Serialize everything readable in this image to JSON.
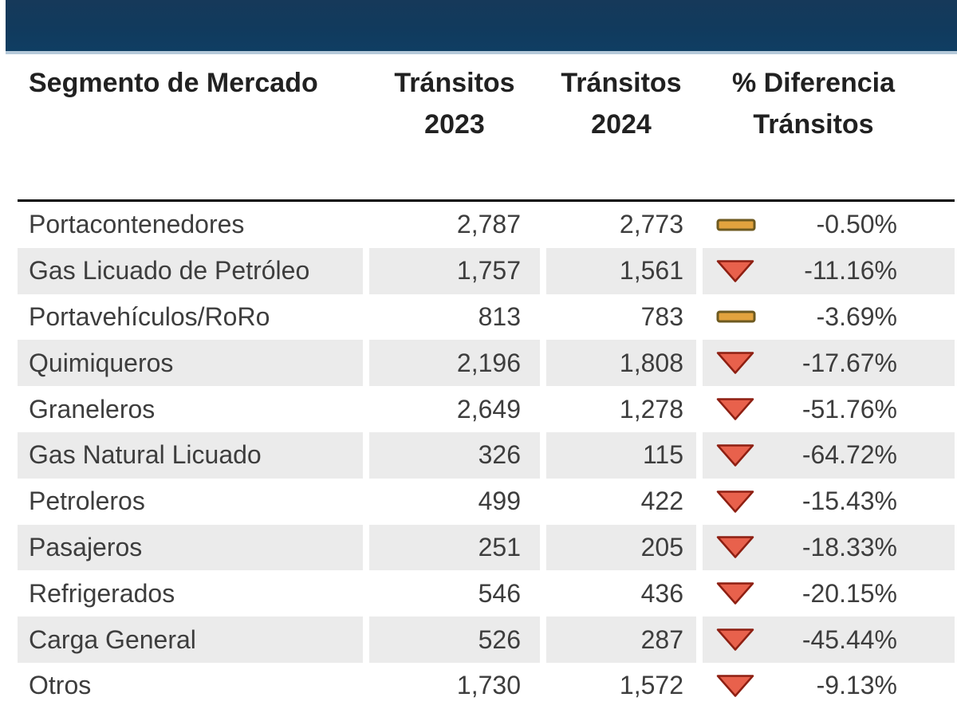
{
  "topbar": {
    "color": "#113a5d",
    "underline_color": "#b5c9d9"
  },
  "table": {
    "header": [
      {
        "label": "Segmento de Mercado",
        "lines": [
          "Segmento de Mercado"
        ]
      },
      {
        "label": "Tránsitos 2023",
        "lines": [
          "Tránsitos",
          "2023"
        ]
      },
      {
        "label": "Tránsitos 2024",
        "lines": [
          "Tránsitos",
          "2024"
        ]
      },
      {
        "label": "% Diferencia Tránsitos",
        "lines": [
          "% Diferencia",
          "Tránsitos"
        ]
      }
    ],
    "rows": [
      {
        "segment": "Portacontenedores",
        "transits_2023": "2,787",
        "transits_2024": "2,773",
        "indicator": "flat-dash-icon",
        "pct_diff": "-0.50%"
      },
      {
        "segment": "Gas Licuado de Petróleo",
        "transits_2023": "1,757",
        "transits_2024": "1,561",
        "indicator": "triangle-down-icon",
        "pct_diff": "-11.16%"
      },
      {
        "segment": "Portavehículos/RoRo",
        "transits_2023": "813",
        "transits_2024": "783",
        "indicator": "flat-dash-icon",
        "pct_diff": "-3.69%"
      },
      {
        "segment": "Quimiqueros",
        "transits_2023": "2,196",
        "transits_2024": "1,808",
        "indicator": "triangle-down-icon",
        "pct_diff": "-17.67%"
      },
      {
        "segment": "Graneleros",
        "transits_2023": "2,649",
        "transits_2024": "1,278",
        "indicator": "triangle-down-icon",
        "pct_diff": "-51.76%"
      },
      {
        "segment": "Gas Natural Licuado",
        "transits_2023": "326",
        "transits_2024": "115",
        "indicator": "triangle-down-icon",
        "pct_diff": "-64.72%"
      },
      {
        "segment": "Petroleros",
        "transits_2023": "499",
        "transits_2024": "422",
        "indicator": "triangle-down-icon",
        "pct_diff": "-15.43%"
      },
      {
        "segment": "Pasajeros",
        "transits_2023": "251",
        "transits_2024": "205",
        "indicator": "triangle-down-icon",
        "pct_diff": "-18.33%"
      },
      {
        "segment": "Refrigerados",
        "transits_2023": "546",
        "transits_2024": "436",
        "indicator": "triangle-down-icon",
        "pct_diff": "-20.15%"
      },
      {
        "segment": "Carga General",
        "transits_2023": "526",
        "transits_2024": "287",
        "indicator": "triangle-down-icon",
        "pct_diff": "-45.44%"
      },
      {
        "segment": "Otros",
        "transits_2023": "1,730",
        "transits_2024": "1,572",
        "indicator": "triangle-down-icon",
        "pct_diff": "-9.13%"
      }
    ]
  },
  "chart_data": {
    "type": "table",
    "columns": [
      "Segmento de Mercado",
      "Tránsitos 2023",
      "Tránsitos 2024",
      "% Diferencia Tránsitos"
    ],
    "rows": [
      {
        "segmento": "Portacontenedores",
        "transitos_2023": 2787,
        "transitos_2024": 2773,
        "pct_diferencia": -0.5,
        "indicator": "flat"
      },
      {
        "segmento": "Gas Licuado de Petróleo",
        "transitos_2023": 1757,
        "transitos_2024": 1561,
        "pct_diferencia": -11.16,
        "indicator": "down"
      },
      {
        "segmento": "Portavehículos/RoRo",
        "transitos_2023": 813,
        "transitos_2024": 783,
        "pct_diferencia": -3.69,
        "indicator": "flat"
      },
      {
        "segmento": "Quimiqueros",
        "transitos_2023": 2196,
        "transitos_2024": 1808,
        "pct_diferencia": -17.67,
        "indicator": "down"
      },
      {
        "segmento": "Graneleros",
        "transitos_2023": 2649,
        "transitos_2024": 1278,
        "pct_diferencia": -51.76,
        "indicator": "down"
      },
      {
        "segmento": "Gas Natural Licuado",
        "transitos_2023": 326,
        "transitos_2024": 115,
        "pct_diferencia": -64.72,
        "indicator": "down"
      },
      {
        "segmento": "Petroleros",
        "transitos_2023": 499,
        "transitos_2024": 422,
        "pct_diferencia": -15.43,
        "indicator": "down"
      },
      {
        "segmento": "Pasajeros",
        "transitos_2023": 251,
        "transitos_2024": 205,
        "pct_diferencia": -18.33,
        "indicator": "down"
      },
      {
        "segmento": "Refrigerados",
        "transitos_2023": 546,
        "transitos_2024": 436,
        "pct_diferencia": -20.15,
        "indicator": "down"
      },
      {
        "segmento": "Carga General",
        "transitos_2023": 526,
        "transitos_2024": 287,
        "pct_diferencia": -45.44,
        "indicator": "down"
      },
      {
        "segmento": "Otros",
        "transitos_2023": 1730,
        "transitos_2024": 1572,
        "pct_diferencia": -9.13,
        "indicator": "down"
      }
    ],
    "layout_hints": {
      "striped_rows": true,
      "header_rule": "black 3px",
      "numbers_aligned": "right"
    }
  },
  "colors": {
    "topbar_navy": "#113a5d",
    "topbar_underline": "#b5c9d9",
    "row_stripe": "#ebebeb",
    "text_dark": "#3d3d3d",
    "header_text": "#212121",
    "dash_fill": "#e2a33e",
    "dash_border": "#6e5a20",
    "triangle_fill": "#e8614c",
    "triangle_border": "#8e1f12"
  }
}
